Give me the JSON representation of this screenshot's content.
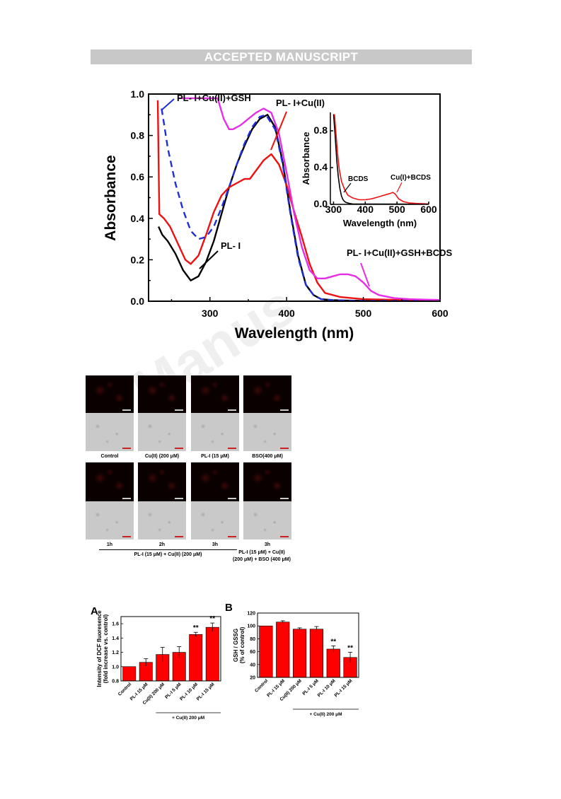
{
  "header": {
    "banner": "ACCEPTED MANUSCRIPT"
  },
  "watermark": {
    "text": "Manus"
  },
  "uv_chart": {
    "chart_data": {
      "type": "line",
      "title": "",
      "xlabel": "Wavelength (nm)",
      "ylabel": "Absorbance",
      "xlim": [
        220,
        600
      ],
      "ylim": [
        0,
        1.0
      ],
      "xticks": [
        300,
        400,
        500,
        600
      ],
      "yticks": [
        "0.0",
        "0.2",
        "0.4",
        "0.6",
        "0.8",
        "1.0"
      ],
      "series": [
        {
          "name": "PL- I",
          "color": "#000000",
          "dash": "",
          "x": [
            233,
            238,
            245,
            255,
            265,
            275,
            285,
            295,
            305,
            315,
            325,
            335,
            345,
            355,
            365,
            375,
            385,
            395,
            405,
            415,
            425,
            435,
            445,
            460,
            480,
            500,
            550,
            600
          ],
          "y": [
            0.36,
            0.32,
            0.29,
            0.23,
            0.15,
            0.1,
            0.12,
            0.19,
            0.29,
            0.42,
            0.55,
            0.66,
            0.75,
            0.83,
            0.88,
            0.9,
            0.84,
            0.67,
            0.43,
            0.22,
            0.08,
            0.03,
            0.01,
            0.005,
            0.003,
            0.002,
            0.002,
            0.002
          ]
        },
        {
          "name": "PL- I+Cu(II)",
          "color": "#ee1111",
          "dash": "",
          "x": [
            232,
            234,
            240,
            248,
            258,
            268,
            275,
            285,
            295,
            305,
            315,
            325,
            335,
            345,
            352,
            360,
            370,
            380,
            390,
            400,
            410,
            420,
            430,
            440,
            450,
            470,
            500,
            550,
            600
          ],
          "y": [
            0.97,
            0.42,
            0.4,
            0.36,
            0.28,
            0.2,
            0.18,
            0.22,
            0.32,
            0.43,
            0.51,
            0.55,
            0.57,
            0.59,
            0.59,
            0.63,
            0.68,
            0.71,
            0.66,
            0.56,
            0.43,
            0.31,
            0.18,
            0.09,
            0.04,
            0.02,
            0.01,
            0.006,
            0.005
          ]
        },
        {
          "name": "PL- I+Cu(II)+GSH",
          "color": "#1f2fd6",
          "dash": "9,6",
          "x": [
            237,
            240,
            245,
            255,
            265,
            275,
            285,
            295,
            305,
            315,
            325,
            335,
            345,
            355,
            365,
            373,
            385,
            395,
            405,
            415,
            425,
            435,
            445,
            460,
            480,
            500,
            600
          ],
          "y": [
            0.93,
            0.86,
            0.74,
            0.57,
            0.44,
            0.34,
            0.3,
            0.31,
            0.36,
            0.45,
            0.55,
            0.66,
            0.76,
            0.84,
            0.89,
            0.9,
            0.83,
            0.66,
            0.42,
            0.21,
            0.08,
            0.03,
            0.01,
            0.005,
            0.003,
            0.002,
            0.002
          ]
        },
        {
          "name": "PL- I+Cu(II)+GSH+BCDS",
          "color": "#e62ee6",
          "dash": "",
          "x": [
            259,
            263,
            270,
            280,
            290,
            300,
            310,
            318,
            325,
            330,
            340,
            350,
            360,
            370,
            380,
            390,
            400,
            410,
            420,
            430,
            440,
            450,
            460,
            470,
            480,
            490,
            500,
            510,
            520,
            540,
            560,
            580,
            600
          ],
          "y": [
            0.98,
            0.98,
            0.98,
            0.98,
            0.98,
            0.98,
            0.98,
            0.88,
            0.83,
            0.83,
            0.85,
            0.88,
            0.91,
            0.93,
            0.91,
            0.81,
            0.62,
            0.42,
            0.26,
            0.15,
            0.11,
            0.11,
            0.12,
            0.13,
            0.13,
            0.12,
            0.09,
            0.05,
            0.03,
            0.015,
            0.01,
            0.008,
            0.006
          ]
        }
      ],
      "annotations": [
        "PL- I+Cu(II)+GSH",
        "PL- I+Cu(II)",
        "PL- I",
        "PL- I+Cu(II)+GSH+BCDS"
      ]
    },
    "inset": {
      "chart_data": {
        "type": "line",
        "xlabel": "Wavelength (nm)",
        "ylabel": "Absorbance",
        "xlim": [
          290,
          600
        ],
        "ylim": [
          0,
          1.0
        ],
        "xticks": [
          "300",
          "400",
          "500",
          "600"
        ],
        "yticks": [
          "0.0",
          "0.4",
          "0.8"
        ],
        "series": [
          {
            "name": "BCDS",
            "color": "#000000",
            "x": [
              300,
              305,
              310,
              315,
              320,
              325,
              330,
              335,
              340,
              350,
              360,
              400,
              600
            ],
            "y": [
              0.98,
              0.75,
              0.48,
              0.3,
              0.17,
              0.09,
              0.05,
              0.03,
              0.02,
              0.01,
              0.005,
              0.003,
              0.002
            ]
          },
          {
            "name": "Cu(I)+BCDS",
            "color": "#ee1111",
            "x": [
              303,
              308,
              313,
              318,
              325,
              335,
              345,
              360,
              380,
              400,
              420,
              440,
              460,
              470,
              480,
              487,
              495,
              505,
              520,
              540,
              560,
              600
            ],
            "y": [
              0.98,
              0.75,
              0.54,
              0.38,
              0.25,
              0.16,
              0.1,
              0.07,
              0.05,
              0.05,
              0.06,
              0.08,
              0.1,
              0.11,
              0.12,
              0.13,
              0.11,
              0.06,
              0.03,
              0.015,
              0.01,
              0.005
            ]
          }
        ],
        "annotations": [
          "BCDS",
          "Cu(I)+BCDS"
        ]
      }
    }
  },
  "micro": {
    "captions_top": [
      "Control",
      "Cu(II) (200 μM)",
      "PL-I (15 μM)",
      "BSO(400 μM)"
    ],
    "captions_bottom": [
      "1h",
      "2h",
      "3h",
      "3h"
    ],
    "group_label_left": "PL-I (15 μM) + Cu(II) (200 μM)",
    "group_label_right_line1": "PL-I (15 μM) + Cu(II)",
    "group_label_right_line2": "(200 μM) + BSO (400 μM)"
  },
  "panel_a": {
    "letter": "A",
    "chart_data": {
      "type": "bar",
      "categories": [
        "Control",
        "PL-I 15 μM",
        "Cu(II) 200 μM",
        "PL-I 5 μM",
        "PL-I 10 μM",
        "PL-I 15 μM"
      ],
      "values": [
        1.0,
        1.06,
        1.17,
        1.2,
        1.45,
        1.55
      ],
      "errors": [
        0.0,
        0.05,
        0.1,
        0.08,
        0.03,
        0.06
      ],
      "significance": [
        "",
        "",
        "",
        "",
        "**",
        "**"
      ],
      "ylabel_line1": "Intensity of DCF fluoresence",
      "ylabel_line2": "(fold increase vs. control)",
      "ylim": [
        0.8,
        1.7
      ],
      "yticks": [
        "0.8",
        "1.0",
        "1.2",
        "1.4",
        "1.6"
      ],
      "group_label": "+ Cu(II) 200 μM",
      "bar_color": "#ff0000"
    }
  },
  "panel_b": {
    "letter": "B",
    "chart_data": {
      "type": "bar",
      "categories": [
        "Control",
        "PL-I 15 μM",
        "Cu(II) 200 μM",
        "PL-I 5 μM",
        "PL-I 10 μM",
        "PL-I 15 μM"
      ],
      "values": [
        100,
        106,
        95,
        95,
        64,
        51
      ],
      "errors": [
        0,
        2,
        2,
        4,
        5,
        8
      ],
      "significance": [
        "",
        "",
        "",
        "",
        "**",
        "**"
      ],
      "ylabel_line1": "GSH / GSSG",
      "ylabel_line2": "(% of control)",
      "ylim": [
        20,
        120
      ],
      "yticks": [
        "20",
        "40",
        "60",
        "80",
        "100",
        "120"
      ],
      "group_label": "+ Cu(II) 200 μM",
      "bar_color": "#ff0000"
    }
  }
}
